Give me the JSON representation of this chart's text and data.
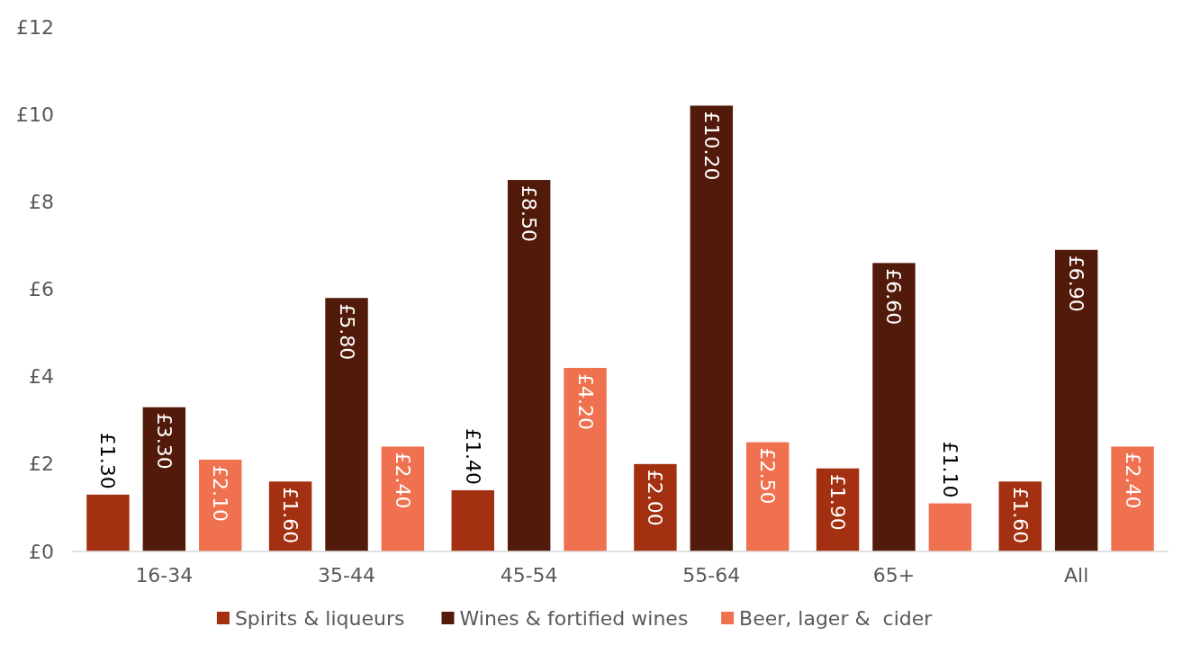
{
  "chart_data": {
    "type": "bar",
    "categories": [
      "16-34",
      "35-44",
      "45-54",
      "55-64",
      "65+",
      "All"
    ],
    "series": [
      {
        "name": "Spirits & liqueurs",
        "color": "#a33010",
        "values": [
          1.3,
          1.6,
          1.4,
          2.0,
          1.9,
          1.6
        ],
        "value_labels": [
          "£1.30",
          "£1.60",
          "£1.40",
          "£2.00",
          "£1.90",
          "£1.60"
        ]
      },
      {
        "name": "Wines & fortified wines",
        "color": "#521a0a",
        "values": [
          3.3,
          5.8,
          8.5,
          10.2,
          6.6,
          6.9
        ],
        "value_labels": [
          "£3.30",
          "£5.80",
          "£8.50",
          "£10.20",
          "£6.60",
          "£6.90"
        ]
      },
      {
        "name": "Beer, lager &  cider",
        "color": "#ef7150",
        "values": [
          2.1,
          2.4,
          4.2,
          2.5,
          1.1,
          2.4
        ],
        "value_labels": [
          "£2.10",
          "£2.40",
          "£4.20",
          "£2.50",
          "£1.10",
          "£2.40"
        ]
      }
    ],
    "ylim": [
      0,
      12
    ],
    "yticks": [
      {
        "value": 0,
        "label": "£0"
      },
      {
        "value": 2,
        "label": "£2"
      },
      {
        "value": 4,
        "label": "£4"
      },
      {
        "value": 6,
        "label": "£6"
      },
      {
        "value": 8,
        "label": "£8"
      },
      {
        "value": 10,
        "label": "£10"
      },
      {
        "value": 12,
        "label": "£12"
      }
    ],
    "grid": false,
    "legend": "bottom"
  }
}
